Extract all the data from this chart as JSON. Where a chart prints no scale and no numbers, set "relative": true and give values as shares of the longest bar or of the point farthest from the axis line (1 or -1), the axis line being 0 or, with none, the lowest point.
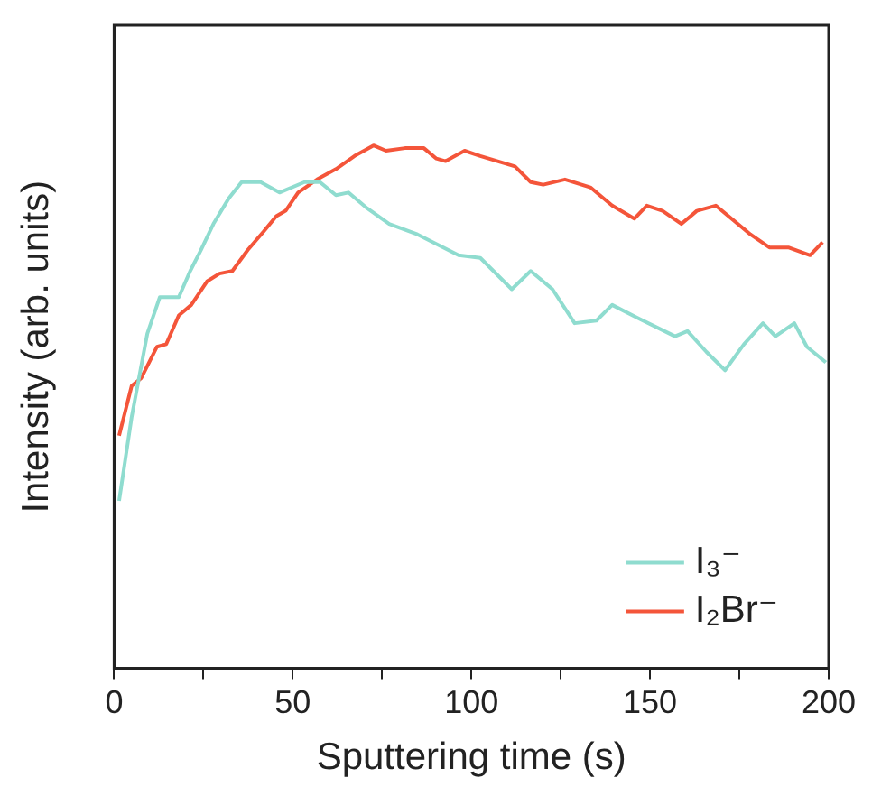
{
  "chart_data": {
    "type": "line",
    "relative": true,
    "xlabel": "Sputtering time (s)",
    "ylabel": "Intensity (arb. units)",
    "xlim": [
      0,
      200
    ],
    "xticks": [
      0,
      {
        "value": 25,
        "label": null
      },
      50,
      {
        "value": 75,
        "label": null
      },
      100,
      {
        "value": 125,
        "label": null
      },
      150,
      {
        "value": 175,
        "label": null
      },
      200
    ],
    "legend": "bottom right",
    "grid": false,
    "marker": "none",
    "line_style": "solid",
    "series": [
      {
        "name": "I₃⁻",
        "color": "#8fdccf",
        "x": [
          1.4,
          4.9,
          9.3,
          12.8,
          18.1,
          21.3,
          24.3,
          27.8,
          32.2,
          35.7,
          41,
          46.3,
          53.3,
          57.6,
          62.1,
          65.6,
          70.8,
          77,
          84.9,
          96.4,
          102.5,
          111.3,
          116.6,
          122.7,
          128.9,
          135,
          139.4,
          146.5,
          157,
          160.5,
          165.8,
          171,
          176.3,
          181.6,
          185.1,
          190.4,
          193.9,
          199.2
        ],
        "values": [
          0.32,
          0.48,
          0.64,
          0.71,
          0.71,
          0.76,
          0.8,
          0.85,
          0.9,
          0.93,
          0.93,
          0.91,
          0.93,
          0.93,
          0.905,
          0.91,
          0.88,
          0.85,
          0.83,
          0.79,
          0.785,
          0.725,
          0.76,
          0.725,
          0.66,
          0.665,
          0.695,
          0.67,
          0.635,
          0.645,
          0.605,
          0.57,
          0.62,
          0.66,
          0.635,
          0.66,
          0.615,
          0.585
        ]
      },
      {
        "name": "I₂Br⁻",
        "color": "#f4553a",
        "x": [
          1.4,
          4.9,
          7.6,
          12,
          14.6,
          18.1,
          21.6,
          26,
          29.5,
          33.1,
          37.4,
          41.8,
          45.4,
          48,
          51.5,
          56.8,
          62.1,
          67.3,
          72.6,
          76.1,
          81.4,
          86.7,
          90.2,
          92.8,
          98.1,
          102.5,
          112.2,
          116.6,
          120.1,
          126.2,
          133.3,
          139.4,
          145.6,
          149.1,
          153.5,
          158.8,
          163.1,
          168.4,
          178.1,
          183.4,
          188.7,
          194.8,
          198.3
        ],
        "values": [
          0.445,
          0.54,
          0.555,
          0.615,
          0.62,
          0.675,
          0.695,
          0.74,
          0.755,
          0.76,
          0.8,
          0.835,
          0.865,
          0.875,
          0.91,
          0.935,
          0.955,
          0.98,
          1,
          0.99,
          0.995,
          0.995,
          0.975,
          0.97,
          0.99,
          0.98,
          0.96,
          0.93,
          0.925,
          0.935,
          0.92,
          0.885,
          0.86,
          0.885,
          0.875,
          0.85,
          0.875,
          0.885,
          0.83,
          0.805,
          0.805,
          0.79,
          0.815
        ]
      }
    ]
  }
}
